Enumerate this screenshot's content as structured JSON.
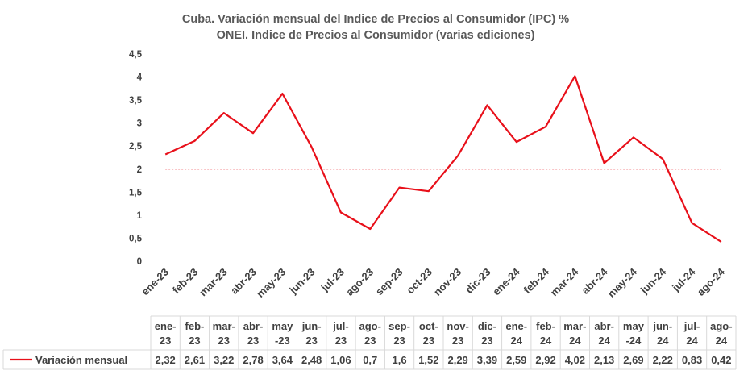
{
  "chart_data": {
    "type": "line",
    "title": "Cuba. Variación mensual del Indice de Precios al Consumidor (IPC) %",
    "subtitle": "ONEI. Indice de Precios al Consumidor (varias ediciones)",
    "categories": [
      "ene-23",
      "feb-23",
      "mar-23",
      "abr-23",
      "may-23",
      "jun-23",
      "jul-23",
      "ago-23",
      "sep-23",
      "oct-23",
      "nov-23",
      "dic-23",
      "ene-24",
      "feb-24",
      "mar-24",
      "abr-24",
      "may-24",
      "jun-24",
      "jul-24",
      "ago-24"
    ],
    "table_headers": [
      [
        "ene-",
        "23"
      ],
      [
        "feb-",
        "23"
      ],
      [
        "mar-",
        "23"
      ],
      [
        "abr-",
        "23"
      ],
      [
        "may",
        "-23"
      ],
      [
        "jun-",
        "23"
      ],
      [
        "jul-",
        "23"
      ],
      [
        "ago-",
        "23"
      ],
      [
        "sep-",
        "23"
      ],
      [
        "oct-",
        "23"
      ],
      [
        "nov-",
        "23"
      ],
      [
        "dic-",
        "23"
      ],
      [
        "ene-",
        "24"
      ],
      [
        "feb-",
        "24"
      ],
      [
        "mar-",
        "24"
      ],
      [
        "abr-",
        "24"
      ],
      [
        "may",
        "-24"
      ],
      [
        "jun-",
        "24"
      ],
      [
        "jul-",
        "24"
      ],
      [
        "ago-",
        "24"
      ]
    ],
    "series": [
      {
        "name": "Variación mensual",
        "values": [
          2.32,
          2.61,
          3.22,
          2.78,
          3.64,
          2.48,
          1.06,
          0.7,
          1.6,
          1.52,
          2.29,
          3.39,
          2.59,
          2.92,
          4.02,
          2.13,
          2.69,
          2.22,
          0.83,
          0.42
        ],
        "value_labels": [
          "2,32",
          "2,61",
          "3,22",
          "2,78",
          "3,64",
          "2,48",
          "1,06",
          "0,7",
          "1,6",
          "1,52",
          "2,29",
          "3,39",
          "2,59",
          "2,92",
          "4,02",
          "2,13",
          "2,69",
          "2,22",
          "0,83",
          "0,42"
        ],
        "color": "#e8101a"
      }
    ],
    "reference_line": {
      "value": 2,
      "color": "#e8101a",
      "style": "dotted"
    },
    "yticks": [
      "0",
      "0,5",
      "1",
      "1,5",
      "2",
      "2,5",
      "3",
      "3,5",
      "4",
      "4,5"
    ],
    "ylim": [
      0,
      4.5
    ],
    "grid": false,
    "legend": "data-table"
  }
}
